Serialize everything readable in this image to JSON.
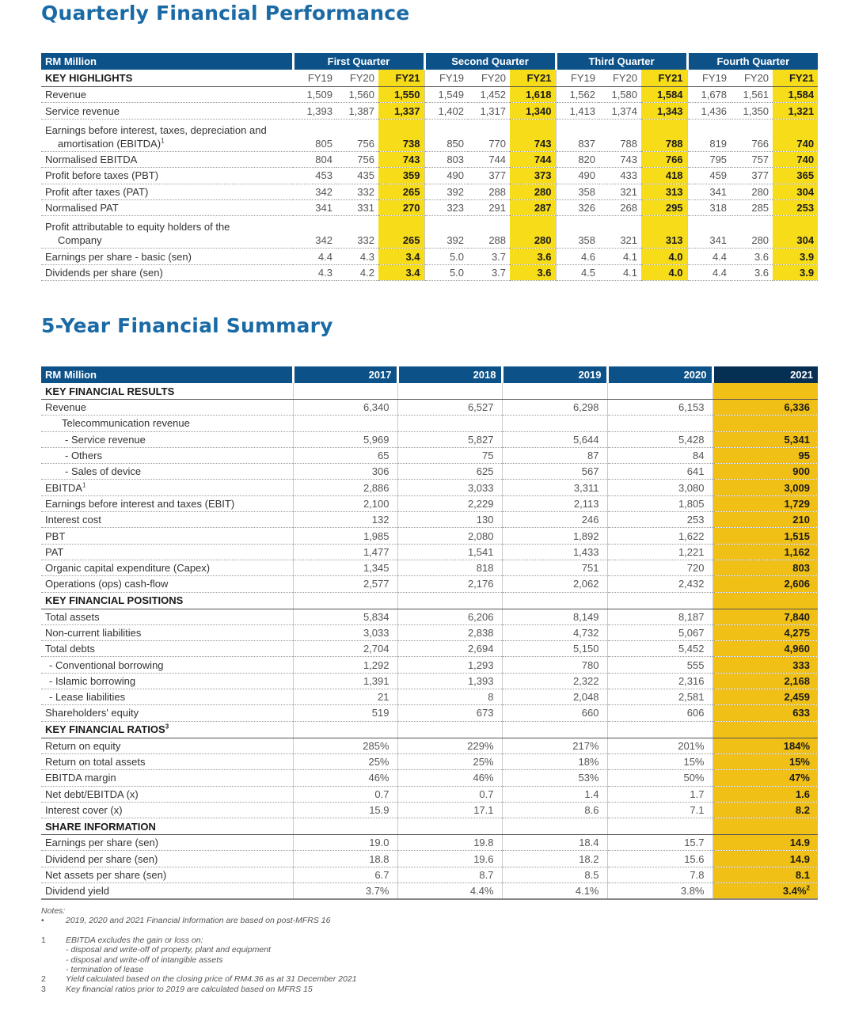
{
  "quarterly": {
    "title": "Quarterly Financial Performance",
    "unit_label": "RM Million",
    "highlights_label": "KEY HIGHLIGHTS",
    "quarters": [
      "First Quarter",
      "Second Quarter",
      "Third Quarter",
      "Fourth Quarter"
    ],
    "years": [
      "FY19",
      "FY20",
      "FY21"
    ],
    "rows": [
      {
        "label": "Revenue",
        "values": [
          "1,509",
          "1,560",
          "1,550",
          "1,549",
          "1,452",
          "1,618",
          "1,562",
          "1,580",
          "1,584",
          "1,678",
          "1,561",
          "1,584"
        ]
      },
      {
        "label": "Service revenue",
        "values": [
          "1,393",
          "1,387",
          "1,337",
          "1,402",
          "1,317",
          "1,340",
          "1,413",
          "1,374",
          "1,343",
          "1,436",
          "1,350",
          "1,321"
        ]
      },
      {
        "label": "Earnings before interest, taxes, depreciation and",
        "label2": "amortisation (EBITDA)",
        "sup": "1",
        "values": [
          "805",
          "756",
          "738",
          "850",
          "770",
          "743",
          "837",
          "788",
          "788",
          "819",
          "766",
          "740"
        ]
      },
      {
        "label": "Normalised EBITDA",
        "values": [
          "804",
          "756",
          "743",
          "803",
          "744",
          "744",
          "820",
          "743",
          "766",
          "795",
          "757",
          "740"
        ]
      },
      {
        "label": "Profit before taxes (PBT)",
        "values": [
          "453",
          "435",
          "359",
          "490",
          "377",
          "373",
          "490",
          "433",
          "418",
          "459",
          "377",
          "365"
        ]
      },
      {
        "label": "Profit after taxes (PAT)",
        "values": [
          "342",
          "332",
          "265",
          "392",
          "288",
          "280",
          "358",
          "321",
          "313",
          "341",
          "280",
          "304"
        ]
      },
      {
        "label": "Normalised PAT",
        "values": [
          "341",
          "331",
          "270",
          "323",
          "291",
          "287",
          "326",
          "268",
          "295",
          "318",
          "285",
          "253"
        ]
      },
      {
        "label": "Profit attributable to equity holders of the",
        "label2": "Company",
        "values": [
          "342",
          "332",
          "265",
          "392",
          "288",
          "280",
          "358",
          "321",
          "313",
          "341",
          "280",
          "304"
        ]
      },
      {
        "label": "Earnings per share - basic (sen)",
        "values": [
          "4.4",
          "4.3",
          "3.4",
          "5.0",
          "3.7",
          "3.6",
          "4.6",
          "4.1",
          "4.0",
          "4.4",
          "3.6",
          "3.9"
        ]
      },
      {
        "label": "Dividends per share (sen)",
        "values": [
          "4.3",
          "4.2",
          "3.4",
          "5.0",
          "3.7",
          "3.6",
          "4.5",
          "4.1",
          "4.0",
          "4.4",
          "3.6",
          "3.9"
        ]
      }
    ]
  },
  "five_year": {
    "title": "5-Year Financial Summary",
    "unit_label": "RM Million",
    "years": [
      "2017",
      "2018",
      "2019",
      "2020",
      "2021"
    ],
    "sections": [
      {
        "heading": "KEY FINANCIAL RESULTS",
        "rows": [
          {
            "label": "Revenue",
            "values": [
              "6,340",
              "6,527",
              "6,298",
              "6,153",
              "6,336"
            ]
          },
          {
            "label": "Telecommunication revenue",
            "indent": 1,
            "values": [
              "",
              "",
              "",
              "",
              ""
            ]
          },
          {
            "label": "-  Service revenue",
            "indent": 2,
            "values": [
              "5,969",
              "5,827",
              "5,644",
              "5,428",
              "5,341"
            ]
          },
          {
            "label": "-  Others",
            "indent": 2,
            "values": [
              "65",
              "75",
              "87",
              "84",
              "95"
            ]
          },
          {
            "label": "-  Sales of device",
            "indent": 2,
            "values": [
              "306",
              "625",
              "567",
              "641",
              "900"
            ]
          },
          {
            "label": "EBITDA",
            "sup": "1",
            "values": [
              "2,886",
              "3,033",
              "3,311",
              "3,080",
              "3,009"
            ]
          },
          {
            "label": "Earnings before interest and taxes (EBIT)",
            "values": [
              "2,100",
              "2,229",
              "2,113",
              "1,805",
              "1,729"
            ]
          },
          {
            "label": "Interest cost",
            "values": [
              "132",
              "130",
              "246",
              "253",
              "210"
            ]
          },
          {
            "label": "PBT",
            "values": [
              "1,985",
              "2,080",
              "1,892",
              "1,622",
              "1,515"
            ]
          },
          {
            "label": "PAT",
            "values": [
              "1,477",
              "1,541",
              "1,433",
              "1,221",
              "1,162"
            ]
          },
          {
            "label": "Organic capital expenditure (Capex)",
            "values": [
              "1,345",
              "818",
              "751",
              "720",
              "803"
            ]
          },
          {
            "label": "Operations (ops) cash-flow",
            "values": [
              "2,577",
              "2,176",
              "2,062",
              "2,432",
              "2,606"
            ]
          }
        ]
      },
      {
        "heading": "KEY FINANCIAL POSITIONS",
        "rows": [
          {
            "label": "Total assets",
            "values": [
              "5,834",
              "6,206",
              "8,149",
              "8,187",
              "7,840"
            ]
          },
          {
            "label": "Non-current liabilities",
            "values": [
              "3,033",
              "2,838",
              "4,732",
              "5,067",
              "4,275"
            ]
          },
          {
            "label": "Total debts",
            "values": [
              "2,704",
              "2,694",
              "5,150",
              "5,452",
              "4,960"
            ]
          },
          {
            "label": "-  Conventional borrowing",
            "indent": 3,
            "values": [
              "1,292",
              "1,293",
              "780",
              "555",
              "333"
            ]
          },
          {
            "label": "-  Islamic borrowing",
            "indent": 3,
            "values": [
              "1,391",
              "1,393",
              "2,322",
              "2,316",
              "2,168"
            ]
          },
          {
            "label": "-  Lease liabilities",
            "indent": 3,
            "values": [
              "21",
              "8",
              "2,048",
              "2,581",
              "2,459"
            ]
          },
          {
            "label": "Shareholders' equity",
            "values": [
              "519",
              "673",
              "660",
              "606",
              "633"
            ]
          }
        ]
      },
      {
        "heading": "KEY FINANCIAL RATIOS",
        "heading_sup": "3",
        "rows": [
          {
            "label": "Return on equity",
            "values": [
              "285%",
              "229%",
              "217%",
              "201%",
              "184%"
            ]
          },
          {
            "label": "Return on total assets",
            "values": [
              "25%",
              "25%",
              "18%",
              "15%",
              "15%"
            ]
          },
          {
            "label": "EBITDA margin",
            "values": [
              "46%",
              "46%",
              "53%",
              "50%",
              "47%"
            ]
          },
          {
            "label": "Net debt/EBITDA (x)",
            "values": [
              "0.7",
              "0.7",
              "1.4",
              "1.7",
              "1.6"
            ]
          },
          {
            "label": "Interest cover (x)",
            "values": [
              "15.9",
              "17.1",
              "8.6",
              "7.1",
              "8.2"
            ]
          }
        ]
      },
      {
        "heading": "SHARE INFORMATION",
        "rows": [
          {
            "label": "Earnings per share (sen)",
            "values": [
              "19.0",
              "19.8",
              "18.4",
              "15.7",
              "14.9"
            ]
          },
          {
            "label": "Dividend per share (sen)",
            "values": [
              "18.8",
              "19.6",
              "18.2",
              "15.6",
              "14.9"
            ]
          },
          {
            "label": "Net assets per share (sen)",
            "values": [
              "6.7",
              "8.7",
              "8.5",
              "7.8",
              "8.1"
            ]
          },
          {
            "label": "Dividend yield",
            "values": [
              "3.7%",
              "4.4%",
              "4.1%",
              "3.8%",
              "3.4%"
            ],
            "last_sup": "2"
          }
        ]
      }
    ]
  },
  "notes": {
    "heading": "Notes:",
    "items": [
      {
        "mark": "•",
        "text": "2019, 2020 and 2021 Financial Information are based on post-MFRS 16"
      },
      {
        "mark": "1",
        "text": "EBITDA excludes the gain or loss on:",
        "subs": [
          "-   disposal and write-off of property, plant and equipment",
          "-   disposal and write-off of intangible assets",
          "-   termination of lease"
        ]
      },
      {
        "mark": "2",
        "text": "Yield calculated based on the closing price of RM4.36 as at 31 December 2021"
      },
      {
        "mark": "3",
        "text": "Key financial ratios prior to 2019 are calculated based on MFRS 15"
      }
    ]
  },
  "colors": {
    "title": "#1a6aa6",
    "header": "#0d5189",
    "header_dark": "#062f54",
    "highlight": "#f0c016",
    "highlight_bright": "#f7dc1a"
  }
}
